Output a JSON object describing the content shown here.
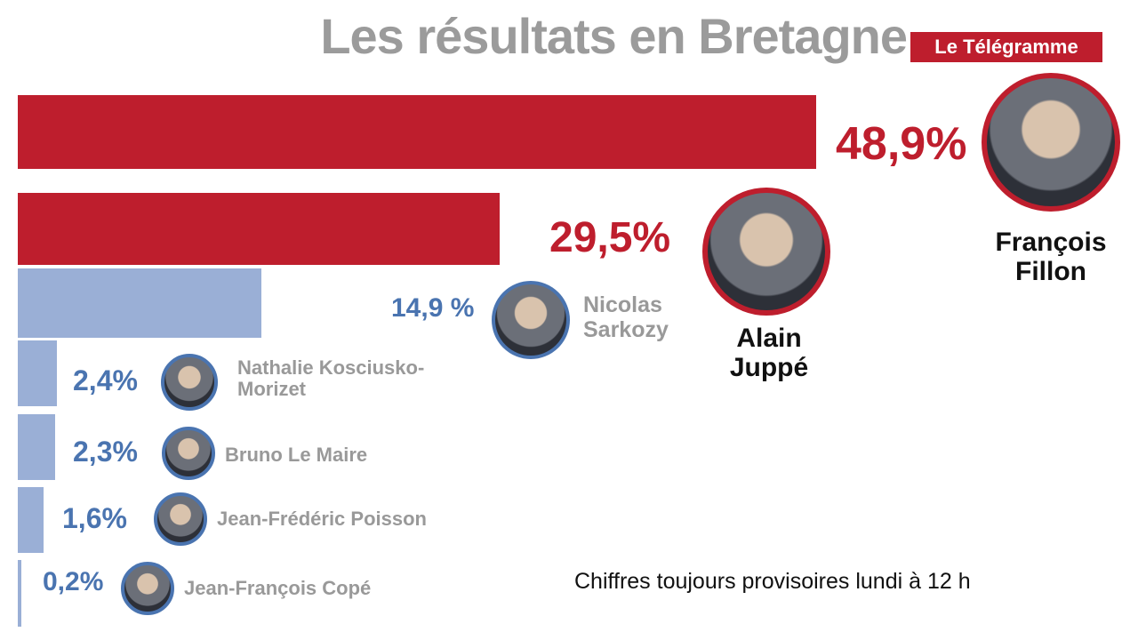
{
  "chart_data": {
    "type": "bar",
    "title": "Les résultats en Bretagne",
    "brand": "Le Télégramme",
    "note": "Chiffres toujours provisoires lundi à 12 h",
    "categories": [
      "François Fillon",
      "Alain Juppé",
      "Nicolas Sarkozy",
      "Nathalie Kosciusko-Morizet",
      "Bruno Le Maire",
      "Jean-Frédéric Poisson",
      "Jean-François Copé"
    ],
    "values": [
      48.9,
      29.5,
      14.9,
      2.4,
      2.3,
      1.6,
      0.2
    ],
    "value_labels": [
      "48,9%",
      "29,5%",
      "14,9 %",
      "2,4%",
      "2,3%",
      "1,6%",
      "0,2%"
    ],
    "colors": [
      "#be1e2d",
      "#be1e2d",
      "#9aafd6",
      "#9aafd6",
      "#9aafd6",
      "#9aafd6",
      "#9aafd6"
    ]
  }
}
